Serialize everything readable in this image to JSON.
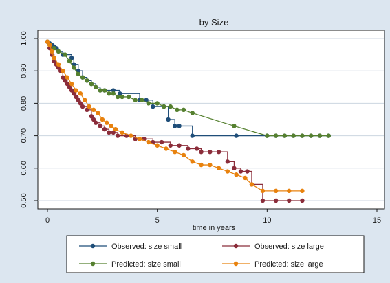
{
  "chart_data": {
    "type": "line",
    "step": true,
    "title": "by Size",
    "xlabel": "time in years",
    "ylabel": "",
    "xlim": [
      0,
      15
    ],
    "ylim": [
      0.5,
      1.0
    ],
    "x_ticks": [
      0,
      5,
      10,
      15
    ],
    "y_ticks": [
      0.5,
      0.6,
      0.7,
      0.8,
      0.9,
      1.0
    ],
    "y_tick_labels": [
      "0.50",
      "0.60",
      "0.70",
      "0.80",
      "0.90",
      "1.00"
    ],
    "grid": true,
    "legend_position": "bottom",
    "colors": {
      "observed_small": "#1f4e79",
      "observed_large": "#8b2d3a",
      "predicted_small": "#55802f",
      "predicted_large": "#e8820e",
      "grid": "#ccd6e0",
      "plot_bg": "#ffffff"
    },
    "series": [
      {
        "name": "Observed: size small",
        "style": "step",
        "color": "#1f4e79",
        "x": [
          0.0,
          0.1,
          0.2,
          0.3,
          0.4,
          0.5,
          0.7,
          1.1,
          1.2,
          1.4,
          1.6,
          1.8,
          2.0,
          2.2,
          2.4,
          2.6,
          3.0,
          3.3,
          4.2,
          4.5,
          4.8,
          5.3,
          5.5,
          5.8,
          6.0,
          6.6,
          8.6,
          10.0,
          10.4,
          10.8,
          11.2,
          11.6,
          12.0,
          12.4,
          12.8
        ],
        "y": [
          0.99,
          0.985,
          0.98,
          0.975,
          0.97,
          0.96,
          0.95,
          0.94,
          0.92,
          0.9,
          0.88,
          0.87,
          0.86,
          0.85,
          0.84,
          0.84,
          0.84,
          0.83,
          0.81,
          0.81,
          0.79,
          0.79,
          0.75,
          0.73,
          0.73,
          0.7,
          0.7,
          0.7,
          0.7,
          0.7,
          0.7,
          0.7,
          0.7,
          0.7,
          0.7
        ]
      },
      {
        "name": "Observed: size large",
        "style": "step",
        "color": "#8b2d3a",
        "x": [
          0.0,
          0.1,
          0.2,
          0.3,
          0.4,
          0.5,
          0.6,
          0.7,
          0.8,
          0.9,
          1.0,
          1.1,
          1.2,
          1.3,
          1.4,
          1.5,
          1.6,
          1.8,
          2.0,
          2.1,
          2.2,
          2.4,
          2.6,
          2.8,
          3.0,
          3.2,
          3.6,
          4.0,
          4.4,
          4.8,
          5.2,
          5.6,
          6.0,
          6.4,
          6.8,
          7.0,
          7.4,
          7.8,
          8.2,
          8.5,
          8.8,
          9.1,
          9.3,
          9.8,
          10.4,
          11.0,
          11.6
        ],
        "y": [
          0.99,
          0.97,
          0.95,
          0.93,
          0.92,
          0.91,
          0.9,
          0.88,
          0.87,
          0.86,
          0.85,
          0.84,
          0.83,
          0.82,
          0.81,
          0.8,
          0.79,
          0.78,
          0.76,
          0.75,
          0.74,
          0.73,
          0.72,
          0.71,
          0.71,
          0.7,
          0.7,
          0.69,
          0.69,
          0.68,
          0.68,
          0.67,
          0.67,
          0.66,
          0.66,
          0.65,
          0.65,
          0.65,
          0.62,
          0.6,
          0.59,
          0.59,
          0.55,
          0.5,
          0.5,
          0.5,
          0.5
        ]
      },
      {
        "name": "Predicted: size small",
        "style": "connected",
        "color": "#55802f",
        "x": [
          0.0,
          0.1,
          0.3,
          0.5,
          0.8,
          1.0,
          1.2,
          1.4,
          1.6,
          1.8,
          2.0,
          2.2,
          2.4,
          2.6,
          2.8,
          3.0,
          3.2,
          3.4,
          3.7,
          4.0,
          4.3,
          4.6,
          5.0,
          5.3,
          5.6,
          5.9,
          6.2,
          6.6,
          8.5,
          10.0,
          10.4,
          10.8,
          11.2,
          11.6,
          12.0,
          12.4,
          12.8
        ],
        "y": [
          0.99,
          0.98,
          0.97,
          0.96,
          0.95,
          0.93,
          0.91,
          0.89,
          0.88,
          0.87,
          0.86,
          0.85,
          0.84,
          0.84,
          0.83,
          0.83,
          0.82,
          0.82,
          0.82,
          0.81,
          0.81,
          0.8,
          0.8,
          0.79,
          0.79,
          0.78,
          0.78,
          0.77,
          0.73,
          0.7,
          0.7,
          0.7,
          0.7,
          0.7,
          0.7,
          0.7,
          0.7
        ]
      },
      {
        "name": "Predicted: size large",
        "style": "connected",
        "color": "#e8820e",
        "x": [
          0.0,
          0.1,
          0.2,
          0.3,
          0.5,
          0.7,
          0.9,
          1.1,
          1.3,
          1.5,
          1.7,
          1.9,
          2.1,
          2.3,
          2.5,
          2.7,
          2.9,
          3.1,
          3.4,
          3.8,
          4.2,
          4.6,
          5.0,
          5.4,
          5.8,
          6.2,
          6.6,
          7.0,
          7.4,
          7.8,
          8.2,
          8.6,
          9.0,
          9.3,
          9.8,
          10.4,
          11.0,
          11.6
        ],
        "y": [
          0.99,
          0.98,
          0.96,
          0.94,
          0.92,
          0.9,
          0.88,
          0.86,
          0.84,
          0.83,
          0.81,
          0.79,
          0.78,
          0.77,
          0.75,
          0.74,
          0.73,
          0.72,
          0.71,
          0.7,
          0.69,
          0.68,
          0.67,
          0.66,
          0.65,
          0.64,
          0.62,
          0.61,
          0.61,
          0.6,
          0.59,
          0.58,
          0.57,
          0.55,
          0.53,
          0.53,
          0.53,
          0.53
        ]
      }
    ]
  }
}
